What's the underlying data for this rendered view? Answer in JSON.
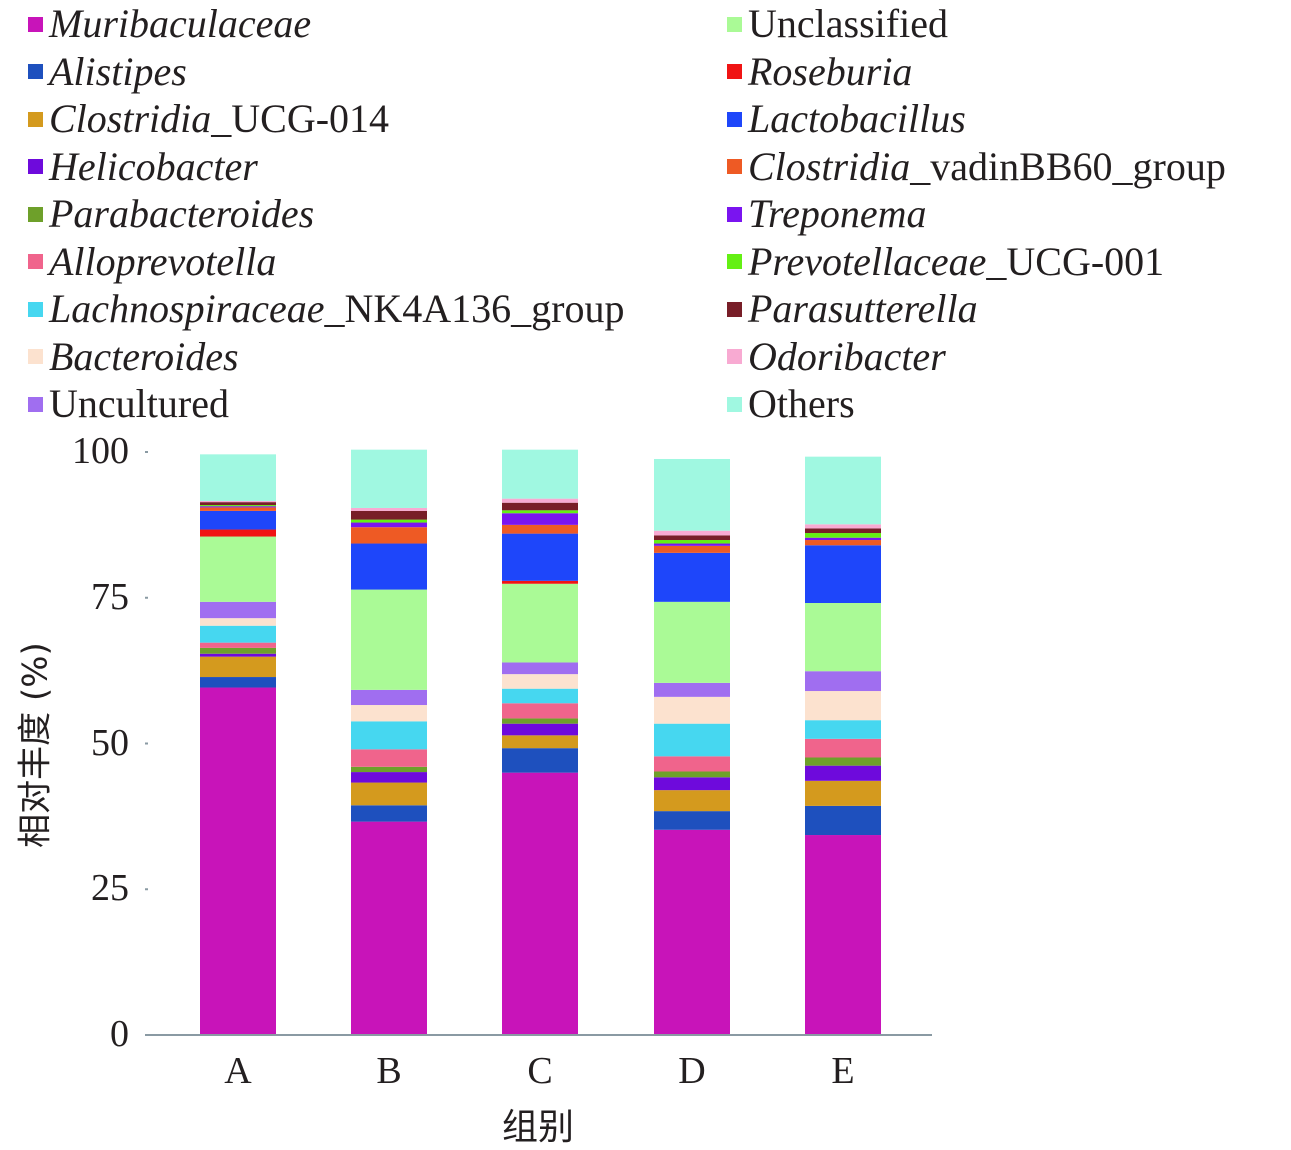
{
  "chart_data": {
    "type": "bar",
    "stacked": true,
    "categories": [
      "A",
      "B",
      "C",
      "D",
      "E"
    ],
    "xlabel": "组别",
    "ylabel": "相对丰度 (%)",
    "ylim": [
      0,
      100
    ],
    "yticks": [
      "0",
      "25",
      "50",
      "75",
      "100"
    ],
    "series": [
      {
        "name": "Muribaculaceae",
        "name_italic": "Muribaculaceae",
        "name_suffix": "",
        "color": "#c814b9",
        "values": [
          59.6,
          36.6,
          45.0,
          35.2,
          34.3
        ]
      },
      {
        "name": "Alistipes",
        "name_italic": "Alistipes",
        "name_suffix": "",
        "color": "#1e50be",
        "values": [
          1.8,
          2.8,
          4.2,
          3.2,
          5.0
        ]
      },
      {
        "name": "Clostridia_UCG-014",
        "name_italic": "Clostridia",
        "name_suffix": "_UCG-014",
        "color": "#d49a1e",
        "values": [
          3.5,
          3.9,
          2.2,
          3.6,
          4.3
        ]
      },
      {
        "name": "Helicobacter",
        "name_italic": "Helicobacter",
        "name_suffix": "",
        "color": "#6e0adc",
        "values": [
          0.5,
          1.8,
          2.0,
          2.2,
          2.6
        ]
      },
      {
        "name": "Parabacteroides",
        "name_italic": "Parabacteroides",
        "name_suffix": "",
        "color": "#6ea02a",
        "values": [
          1.0,
          0.9,
          0.9,
          1.0,
          1.4
        ]
      },
      {
        "name": "Alloprevotella",
        "name_italic": "Alloprevotella",
        "name_suffix": "",
        "color": "#f0648c",
        "values": [
          0.9,
          3.0,
          2.6,
          2.6,
          3.2
        ]
      },
      {
        "name": "Lachnospiraceae_NK4A136_group",
        "name_italic": "Lachnospiraceae",
        "name_suffix": "_NK4A136_group",
        "color": "#46d7f0",
        "values": [
          2.9,
          4.8,
          2.5,
          5.6,
          3.2
        ]
      },
      {
        "name": "Bacteroides",
        "name_italic": "Bacteroides",
        "name_suffix": "",
        "color": "#fce2cf",
        "values": [
          1.3,
          2.8,
          2.5,
          4.6,
          5.0
        ]
      },
      {
        "name": "Uncultured",
        "name_italic": "",
        "name_suffix": "Uncultured",
        "color": "#a06ef0",
        "values": [
          2.8,
          2.6,
          2.0,
          2.4,
          3.4
        ]
      },
      {
        "name": "Unclassified",
        "name_italic": "",
        "name_suffix": "Unclassified",
        "color": "#aafa96",
        "values": [
          11.2,
          17.2,
          13.5,
          13.9,
          11.7
        ]
      },
      {
        "name": "Roseburia",
        "name_italic": "Roseburia",
        "name_suffix": "",
        "color": "#f01414",
        "values": [
          1.2,
          0.0,
          0.5,
          0.0,
          0.0
        ]
      },
      {
        "name": "Lactobacillus",
        "name_italic": "Lactobacillus",
        "name_suffix": "",
        "color": "#1e46fa",
        "values": [
          3.2,
          7.9,
          8.1,
          8.4,
          9.9
        ]
      },
      {
        "name": "Clostridia_vadinBB60_group",
        "name_italic": "Clostridia",
        "name_suffix": "_vadinBB60_group",
        "color": "#ee5a24",
        "values": [
          0.6,
          2.8,
          1.5,
          1.2,
          0.9
        ]
      },
      {
        "name": "Treponema",
        "name_italic": "Treponema",
        "name_suffix": "",
        "color": "#7a14f0",
        "values": [
          0.2,
          0.8,
          2.0,
          0.4,
          0.4
        ]
      },
      {
        "name": "Prevotellaceae_UCG-001",
        "name_italic": "Prevotellaceae",
        "name_suffix": "_UCG-001",
        "color": "#64f014",
        "values": [
          0.2,
          0.5,
          0.5,
          0.6,
          0.8
        ]
      },
      {
        "name": "Parasutterella",
        "name_italic": "Parasutterella",
        "name_suffix": "",
        "color": "#781e28",
        "values": [
          0.5,
          1.5,
          1.3,
          0.8,
          0.8
        ]
      },
      {
        "name": "Odoribacter",
        "name_italic": "Odoribacter",
        "name_suffix": "",
        "color": "#f8aad2",
        "values": [
          0.2,
          0.5,
          0.7,
          0.8,
          0.7
        ]
      },
      {
        "name": "Others",
        "name_italic": "",
        "name_suffix": "Others",
        "color": "#a0f8e1",
        "values": [
          8.0,
          10.0,
          8.4,
          12.3,
          11.6
        ]
      }
    ]
  }
}
